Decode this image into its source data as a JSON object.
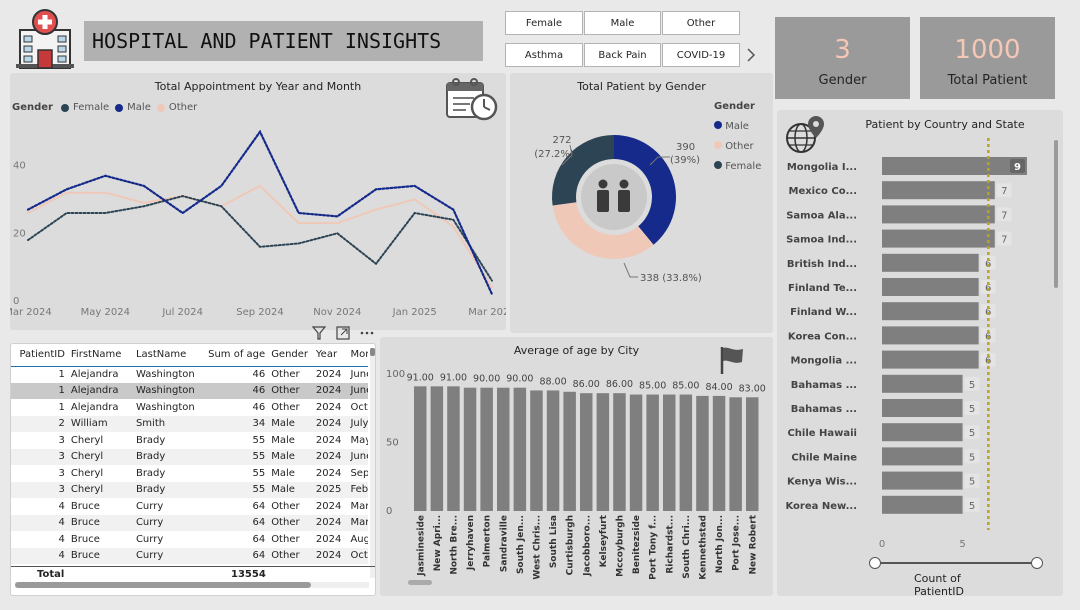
{
  "header": {
    "title": "HOSPITAL AND PATIENT INSIGHTS",
    "logo_icon": "hospital-icon"
  },
  "slicers": {
    "gender": [
      "Female",
      "Male",
      "Other"
    ],
    "condition": [
      "Asthma",
      "Back Pain",
      "COVID-19"
    ],
    "next_icon": "chevron-right-icon"
  },
  "cards": {
    "gender": {
      "value": "3",
      "label": "Gender"
    },
    "patients": {
      "value": "1000",
      "label": "Total Patient"
    }
  },
  "colors": {
    "female": "#2d4454",
    "male": "#152a8a",
    "other": "#f0c8b8",
    "bar": "#7f7f7f",
    "panel": "#dcdcdc",
    "card": "#9a9a9a"
  },
  "appointments": {
    "title": "Total Appointment by Year and Month",
    "legend_title": "Gender",
    "icon": "calendar-clock-icon",
    "chart_data": {
      "type": "line",
      "x": [
        "Mar 2024",
        "Apr 2024",
        "May 2024",
        "Jun 2024",
        "Jul 2024",
        "Aug 2024",
        "Sep 2024",
        "Oct 2024",
        "Nov 2024",
        "Dec 2024",
        "Jan 2025",
        "Feb 2025",
        "Mar 2025"
      ],
      "x_ticks": [
        "Mar 2024",
        "May 2024",
        "Jul 2024",
        "Sep 2024",
        "Nov 2024",
        "Jan 2025",
        "Mar 2025"
      ],
      "y_ticks": [
        "0",
        "20",
        "40"
      ],
      "ylim": [
        0,
        52
      ],
      "series": [
        {
          "name": "Female",
          "values": [
            18,
            26,
            26,
            28,
            31,
            28,
            16,
            17,
            20,
            11,
            26,
            24,
            6
          ]
        },
        {
          "name": "Male",
          "values": [
            27,
            33,
            37,
            34,
            26,
            34,
            50,
            26,
            25,
            33,
            34,
            27,
            2
          ]
        },
        {
          "name": "Other",
          "values": [
            26,
            32,
            32,
            29,
            31,
            28,
            34,
            23,
            23,
            27,
            30,
            22,
            4
          ]
        }
      ]
    }
  },
  "gender_donut": {
    "title": "Total Patient by Gender",
    "legend_title": "Gender",
    "icon": "patients-icon",
    "chart_data": {
      "type": "pie",
      "slices": [
        {
          "name": "Male",
          "value": 390,
          "label": "390",
          "pct": "(39%)"
        },
        {
          "name": "Other",
          "value": 338,
          "label": "338 (33.8%)",
          "pct": ""
        },
        {
          "name": "Female",
          "value": 272,
          "label": "272",
          "pct": "(27.2%)"
        }
      ]
    }
  },
  "country": {
    "title": "Patient by Country and State",
    "icon": "globe-pin-icon",
    "x_title": "Count of PatientID",
    "x_ticks": [
      "0",
      "5"
    ],
    "chart_data": {
      "type": "bar",
      "categories": [
        "Mongolia I...",
        "Mexico Co...",
        "Samoa Ala...",
        "Samoa Ind...",
        "British Ind...",
        "Finland Te...",
        "Finland W...",
        "Korea Con...",
        "Mongolia ...",
        "Bahamas ...",
        "Bahamas ...",
        "Chile Hawaii",
        "Chile Maine",
        "Kenya Wis...",
        "Korea New..."
      ],
      "values": [
        9,
        7,
        7,
        7,
        6,
        6,
        6,
        6,
        6,
        5,
        5,
        5,
        5,
        5,
        5
      ],
      "xlim": [
        0,
        9
      ],
      "average_line": 6.6
    }
  },
  "table": {
    "toolbar_icons": [
      "filter-icon",
      "focus-mode-icon",
      "more-options-icon"
    ],
    "columns": [
      "PatientID",
      "FirstName",
      "LastName",
      "Sum of age",
      "Gender",
      "Year",
      "Mor"
    ],
    "rows": [
      [
        "1",
        "Alejandra",
        "Washington",
        "46",
        "Other",
        "2024",
        "June"
      ],
      [
        "1",
        "Alejandra",
        "Washington",
        "46",
        "Other",
        "2024",
        "June"
      ],
      [
        "1",
        "Alejandra",
        "Washington",
        "46",
        "Other",
        "2024",
        "Octo"
      ],
      [
        "2",
        "William",
        "Smith",
        "34",
        "Male",
        "2024",
        "July"
      ],
      [
        "3",
        "Cheryl",
        "Brady",
        "55",
        "Male",
        "2024",
        "May"
      ],
      [
        "3",
        "Cheryl",
        "Brady",
        "55",
        "Male",
        "2024",
        "June"
      ],
      [
        "3",
        "Cheryl",
        "Brady",
        "55",
        "Male",
        "2024",
        "Septe"
      ],
      [
        "3",
        "Cheryl",
        "Brady",
        "55",
        "Male",
        "2025",
        "Febr"
      ],
      [
        "4",
        "Bruce",
        "Curry",
        "64",
        "Other",
        "2024",
        "Mar"
      ],
      [
        "4",
        "Bruce",
        "Curry",
        "64",
        "Other",
        "2024",
        "Mar"
      ],
      [
        "4",
        "Bruce",
        "Curry",
        "64",
        "Other",
        "2024",
        "Aug"
      ],
      [
        "4",
        "Bruce",
        "Curry",
        "64",
        "Other",
        "2024",
        "Octo"
      ]
    ],
    "total_label": "Total",
    "total_value": "13554"
  },
  "age_city": {
    "title": "Average of age by City",
    "icon": "flag-icon",
    "chart_data": {
      "type": "bar",
      "categories": [
        "Jasmineside",
        "New Apri...",
        "North Bre...",
        "Jerryhaven",
        "Palmerton",
        "Sandraville",
        "South Jen...",
        "West Chris...",
        "South Lisa",
        "Curtisburgh",
        "Jacobboro...",
        "Kelseyfurt",
        "Mccoyburgh",
        "Benitezside",
        "Port Tony f...",
        "Richardst...",
        "South Chri...",
        "Kennethstad",
        "North Jon...",
        "Port Jose...",
        "New Robert"
      ],
      "values": [
        91,
        91,
        91,
        90,
        90,
        90,
        90,
        88,
        88,
        87,
        86,
        86,
        86,
        85,
        85,
        85,
        85,
        84,
        84,
        83,
        83
      ],
      "data_labels": [
        "91.00",
        "",
        "91.00",
        "",
        "90.00",
        "",
        "90.00",
        "",
        "88.00",
        "",
        "86.00",
        "",
        "86.00",
        "",
        "85.00",
        "",
        "85.00",
        "",
        "84.00",
        "",
        "83.00"
      ],
      "y_ticks": [
        "0",
        "50",
        "100"
      ],
      "ylim": [
        0,
        100
      ]
    }
  }
}
